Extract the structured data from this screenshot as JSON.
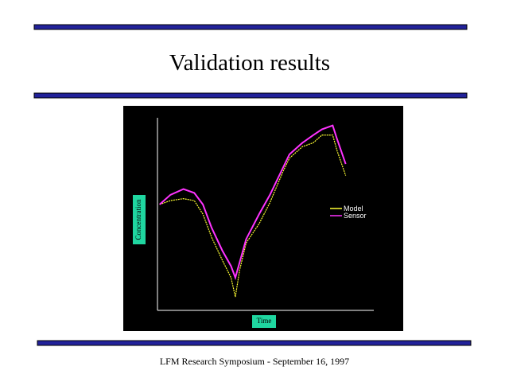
{
  "title": "Validation results",
  "footer": "LFM Research Symposium -  September 16, 1997",
  "chart_data": {
    "type": "line",
    "x_label": "Time",
    "y_label": "Concentration",
    "x": [
      1,
      6,
      12,
      17,
      21,
      25,
      30,
      34,
      36,
      38,
      41,
      47,
      52,
      58,
      61,
      67,
      72,
      76,
      81,
      83,
      87
    ],
    "xlim": [
      0,
      100
    ],
    "ylim": [
      0,
      100
    ],
    "series": [
      {
        "name": "Model",
        "color": "#ffff33",
        "values": [
          55,
          57,
          58,
          57,
          50,
          38,
          26,
          17,
          7,
          21,
          35,
          45,
          56,
          72,
          79,
          85,
          87,
          91,
          91,
          83,
          70
        ]
      },
      {
        "name": "Sensor",
        "color": "#ff33ff",
        "values": [
          55,
          60,
          63,
          61,
          55,
          43,
          31,
          23,
          17,
          25,
          37,
          50,
          60,
          74,
          81,
          87,
          91,
          94,
          96,
          89,
          76
        ]
      }
    ]
  }
}
